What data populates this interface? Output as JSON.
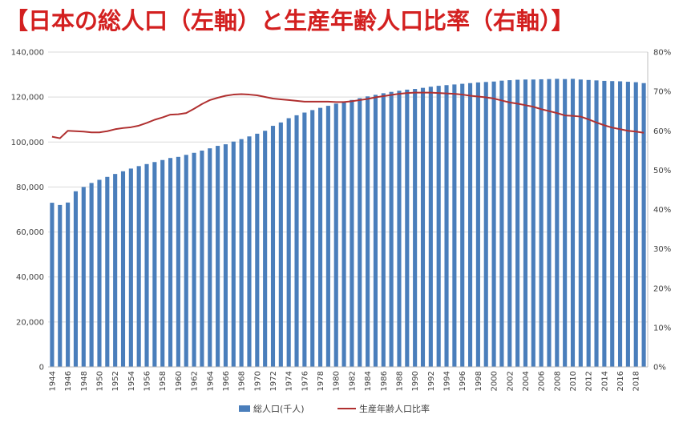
{
  "title": "【日本の総人口（左軸）と生産年齢人口比率（右軸）】",
  "colors": {
    "title": "#d32020",
    "bar": "#4a7ebb",
    "line": "#b03030",
    "grid": "#d9d9d9",
    "axis": "#404040"
  },
  "chart_data": {
    "type": "bar",
    "title": "【日本の総人口（左軸）と生産年齢人口比率（右軸）】",
    "x": [
      1944,
      1945,
      1946,
      1947,
      1948,
      1949,
      1950,
      1951,
      1952,
      1953,
      1954,
      1955,
      1956,
      1957,
      1958,
      1959,
      1960,
      1961,
      1962,
      1963,
      1964,
      1965,
      1966,
      1967,
      1968,
      1969,
      1970,
      1971,
      1972,
      1973,
      1974,
      1975,
      1976,
      1977,
      1978,
      1979,
      1980,
      1981,
      1982,
      1983,
      1984,
      1985,
      1986,
      1987,
      1988,
      1989,
      1990,
      1991,
      1992,
      1993,
      1994,
      1995,
      1996,
      1997,
      1998,
      1999,
      2000,
      2001,
      2002,
      2003,
      2004,
      2005,
      2006,
      2007,
      2008,
      2009,
      2010,
      2011,
      2012,
      2013,
      2014,
      2015,
      2016,
      2017,
      2018,
      2019
    ],
    "x_tick_labels": [
      "1944",
      "1946",
      "1948",
      "1950",
      "1952",
      "1954",
      "1956",
      "1958",
      "1960",
      "1962",
      "1964",
      "1966",
      "1968",
      "1970",
      "1972",
      "1974",
      "1976",
      "1978",
      "1980",
      "1982",
      "1984",
      "1986",
      "1988",
      "1990",
      "1992",
      "1994",
      "1996",
      "1998",
      "2000",
      "2002",
      "2004",
      "2006",
      "2008",
      "2010",
      "2012",
      "2014",
      "2016",
      "2018"
    ],
    "y_left": {
      "min": 0,
      "max": 140000,
      "step": 20000,
      "tick_labels": [
        "0",
        "20,000",
        "40,000",
        "60,000",
        "80,000",
        "100,000",
        "120,000",
        "140,000"
      ]
    },
    "y_right": {
      "min": 0,
      "max": 80,
      "step": 10,
      "tick_labels": [
        "0%",
        "10%",
        "20%",
        "30%",
        "40%",
        "50%",
        "60%",
        "70%",
        "80%"
      ]
    },
    "grid": true,
    "legend_position": "bottom",
    "series": [
      {
        "name": "総人口(千人)",
        "type": "bar",
        "axis": "left",
        "values": [
          73000,
          72000,
          73100,
          78100,
          80000,
          81800,
          83200,
          84500,
          85800,
          87000,
          88200,
          89300,
          90200,
          91100,
          92000,
          92900,
          93400,
          94300,
          95200,
          96200,
          97200,
          98300,
          99000,
          100200,
          101300,
          102500,
          103700,
          105000,
          107200,
          108700,
          110600,
          111900,
          113100,
          114200,
          115200,
          116100,
          117100,
          117900,
          118700,
          119500,
          120300,
          121000,
          121700,
          122300,
          122800,
          123300,
          123600,
          124100,
          124600,
          125000,
          125300,
          125600,
          125900,
          126200,
          126500,
          126700,
          126900,
          127300,
          127500,
          127700,
          127800,
          127800,
          127900,
          128000,
          128100,
          128000,
          128100,
          127800,
          127600,
          127400,
          127200,
          127100,
          127000,
          126800,
          126600,
          126200
        ]
      },
      {
        "name": "生産年齢人口比率",
        "type": "line",
        "axis": "right",
        "values": [
          58.5,
          58.1,
          60.0,
          59.9,
          59.8,
          59.6,
          59.6,
          59.9,
          60.4,
          60.7,
          60.9,
          61.3,
          62.0,
          62.8,
          63.4,
          64.1,
          64.2,
          64.5,
          65.6,
          66.8,
          67.8,
          68.4,
          68.9,
          69.2,
          69.3,
          69.2,
          69.0,
          68.6,
          68.2,
          68.0,
          67.8,
          67.6,
          67.4,
          67.4,
          67.4,
          67.4,
          67.3,
          67.3,
          67.5,
          67.8,
          68.1,
          68.5,
          68.8,
          69.1,
          69.4,
          69.6,
          69.7,
          69.7,
          69.7,
          69.6,
          69.5,
          69.4,
          69.2,
          68.9,
          68.7,
          68.5,
          68.2,
          67.7,
          67.2,
          66.9,
          66.5,
          66.1,
          65.5,
          65.0,
          64.5,
          63.9,
          63.8,
          63.6,
          62.9,
          62.1,
          61.4,
          60.8,
          60.4,
          60.0,
          59.8,
          59.5
        ]
      }
    ]
  }
}
